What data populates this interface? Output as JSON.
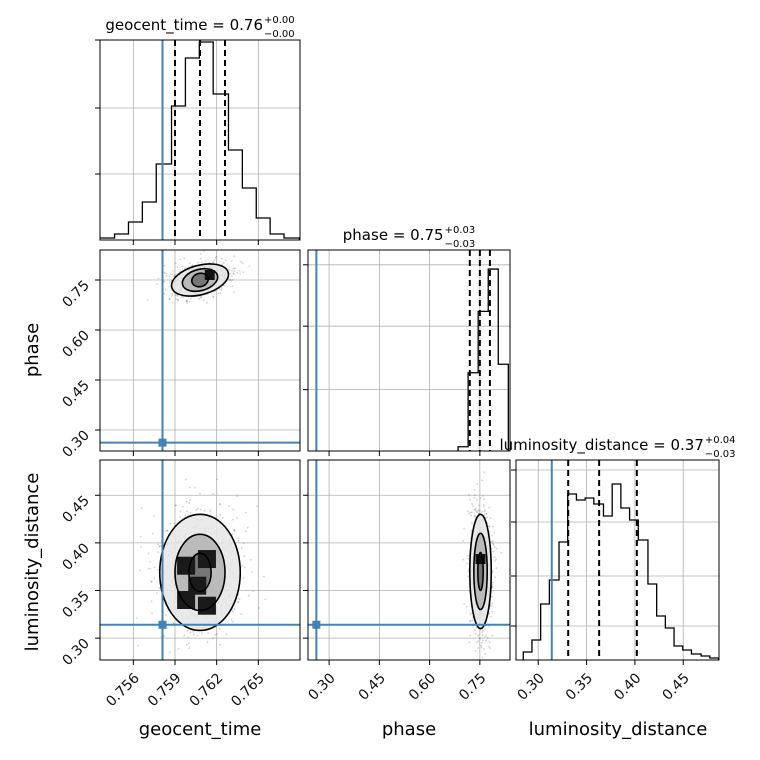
{
  "chart_data": [
    {
      "type": "histogram",
      "panel": "geocent_time-marginal",
      "title": "geocent_time = 0.76",
      "title_sup": "+0.00",
      "title_sub": "−0.00",
      "bin_centers": [
        0.7541,
        0.7552,
        0.7562,
        0.7572,
        0.7582,
        0.7593,
        0.7603,
        0.7613,
        0.7623,
        0.7634,
        0.7644,
        0.7654,
        0.7664,
        0.7674
      ],
      "counts": [
        0.01,
        0.03,
        0.09,
        0.19,
        0.38,
        0.67,
        0.91,
        0.99,
        0.73,
        0.45,
        0.26,
        0.11,
        0.03,
        0.01
      ],
      "quantiles": [
        0.759,
        0.7608,
        0.7626
      ],
      "truth": 0.7581,
      "xlim": [
        0.7536,
        0.768
      ],
      "ylim": [
        0,
        1.0
      ]
    },
    {
      "type": "histogram",
      "panel": "phase-marginal",
      "title": "phase = 0.75",
      "title_sup": "+0.03",
      "title_sub": "−0.03",
      "bin_edges": [
        0.685,
        0.715,
        0.745,
        0.775,
        0.805,
        0.835
      ],
      "counts": [
        0.02,
        0.37,
        0.66,
        0.86,
        0.41
      ],
      "quantiles": [
        0.72,
        0.75,
        0.78
      ],
      "truth": 0.262,
      "xlim": [
        0.237,
        0.84
      ],
      "ylim": [
        0,
        0.95
      ]
    },
    {
      "type": "histogram",
      "panel": "luminosity_distance-marginal",
      "title": "luminosity_distance = 0.37",
      "title_sup": "+0.04",
      "title_sub": "−0.03",
      "bin_centers": [
        0.289,
        0.298,
        0.307,
        0.316,
        0.326,
        0.335,
        0.344,
        0.353,
        0.362,
        0.372,
        0.381,
        0.39,
        0.399,
        0.408,
        0.418,
        0.427,
        0.436,
        0.445,
        0.454,
        0.463,
        0.473,
        0.482
      ],
      "counts": [
        0.04,
        0.1,
        0.28,
        0.4,
        0.59,
        0.83,
        0.8,
        0.81,
        0.78,
        0.72,
        0.88,
        0.76,
        0.7,
        0.6,
        0.38,
        0.22,
        0.16,
        0.07,
        0.05,
        0.03,
        0.02,
        0.01
      ],
      "quantiles": [
        0.331,
        0.363,
        0.402
      ],
      "truth": 0.314,
      "xlim": [
        0.277,
        0.487
      ],
      "ylim": [
        0,
        1.0
      ]
    },
    {
      "type": "scatter-contour",
      "panel": "geocent_time-vs-phase",
      "xlabel": "",
      "ylabel": "phase",
      "center": [
        0.7608,
        0.75
      ],
      "contour_half_widths": [
        [
          0.0006,
          0.02
        ],
        [
          0.0013,
          0.032
        ],
        [
          0.0021,
          0.044
        ]
      ],
      "contour_tilt_deg": -15,
      "peak": [
        0.7615,
        0.765
      ],
      "truth": [
        0.7581,
        0.262
      ],
      "xlim": [
        0.7536,
        0.768
      ],
      "ylim": [
        0.237,
        0.84
      ]
    },
    {
      "type": "scatter-contour",
      "panel": "geocent_time-vs-luminosity_distance",
      "xlabel": "geocent_time",
      "ylabel": "luminosity_distance",
      "center": [
        0.7608,
        0.369
      ],
      "contour_half_widths": [
        [
          0.0008,
          0.02
        ],
        [
          0.0018,
          0.04
        ],
        [
          0.0029,
          0.061
        ]
      ],
      "dark_cells": [
        [
          0.7598,
          0.376
        ],
        [
          0.7613,
          0.383
        ],
        [
          0.7606,
          0.355
        ],
        [
          0.7613,
          0.334
        ],
        [
          0.7598,
          0.34
        ]
      ],
      "truth": [
        0.7581,
        0.314
      ],
      "xlim": [
        0.7536,
        0.768
      ],
      "ylim": [
        0.277,
        0.487
      ]
    },
    {
      "type": "scatter-contour",
      "panel": "phase-vs-luminosity_distance",
      "xlabel": "phase",
      "ylabel": "",
      "center": [
        0.752,
        0.37
      ],
      "contour_half_widths": [
        [
          0.008,
          0.02
        ],
        [
          0.02,
          0.04
        ],
        [
          0.032,
          0.06
        ]
      ],
      "peak": [
        0.752,
        0.383
      ],
      "truth": [
        0.262,
        0.314
      ],
      "xlim": [
        0.237,
        0.84
      ],
      "ylim": [
        0.277,
        0.487
      ]
    }
  ],
  "axes": {
    "geocent_time": {
      "label": "geocent_time",
      "ticks": [
        0.756,
        0.759,
        0.762,
        0.765
      ],
      "tick_labels": [
        "0.756",
        "0.759",
        "0.762",
        "0.765"
      ]
    },
    "phase": {
      "label": "phase",
      "ticks": [
        0.3,
        0.45,
        0.6,
        0.75
      ],
      "tick_labels": [
        "0.30",
        "0.45",
        "0.60",
        "0.75"
      ]
    },
    "luminosity_distance": {
      "label": "luminosity_distance",
      "ticks": [
        0.3,
        0.35,
        0.4,
        0.45
      ],
      "tick_labels": [
        "0.30",
        "0.35",
        "0.40",
        "0.45"
      ]
    }
  },
  "colors": {
    "truth": "#4682b4",
    "histogram": "#000000",
    "grid": "#b0b0b0",
    "points": "#000000"
  }
}
